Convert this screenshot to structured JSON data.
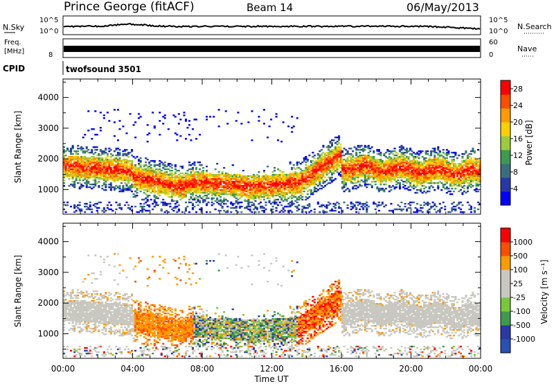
{
  "header": {
    "station": "Prince George (fitACF)",
    "beam": "Beam 14",
    "date": "06/May/2013"
  },
  "strip_labels": {
    "nsky": "N.Sky",
    "nsearch": "N.Search",
    "freq_line1": "Freq.",
    "freq_line2": "[MHz]",
    "nave": "Nave",
    "cpid": "CPID",
    "cpid_value": "twofsound 3501",
    "noise_tick_hi": "10^5",
    "noise_tick_lo": "10^0",
    "freq_tick_hi": "",
    "freq_tick_lo": "8",
    "nave_tick_hi": "60",
    "nave_tick_lo": "0"
  },
  "colors": {
    "power": [
      "#0000ff",
      "#2838a8",
      "#3a6e7e",
      "#3d9a4e",
      "#9ccc3c",
      "#ffd000",
      "#ff9a00",
      "#ff4d00",
      "#ff0000"
    ],
    "velocity": [
      "#ff0000",
      "#ff4d00",
      "#ff9a00",
      "#c8c8c0",
      "#c8c8c0",
      "#78c83a",
      "#3d9a4e",
      "#2838a8",
      "#2850b8"
    ],
    "ground_scatter": "#c8c8c0"
  },
  "chart_data": [
    {
      "type": "heatmap",
      "name": "power",
      "xlabel": "",
      "ylabel": "Slant Range [km]",
      "x_ticks": [
        "00:00",
        "04:00",
        "08:00",
        "12:00",
        "16:00",
        "20:00",
        "00:00"
      ],
      "y_ticks": [
        1000,
        2000,
        3000,
        4000
      ],
      "ylim": [
        200,
        4600
      ],
      "colorbar_label": "Power [dB]",
      "colorbar_ticks": [
        4,
        8,
        12,
        16,
        20,
        24,
        28
      ],
      "colorbar_range": [
        0,
        30
      ]
    },
    {
      "type": "heatmap",
      "name": "velocity",
      "xlabel": "Time UT",
      "ylabel": "Slant Range [km]",
      "x_ticks": [
        "00:00",
        "04:00",
        "08:00",
        "12:00",
        "16:00",
        "20:00",
        "00:00"
      ],
      "y_ticks": [
        1000,
        2000,
        3000,
        4000
      ],
      "ylim": [
        200,
        4600
      ],
      "colorbar_label": "Velocity [m s⁻¹]",
      "colorbar_ticks": [
        1000,
        500,
        100,
        25,
        -25,
        -100,
        -500,
        -1000
      ]
    }
  ]
}
